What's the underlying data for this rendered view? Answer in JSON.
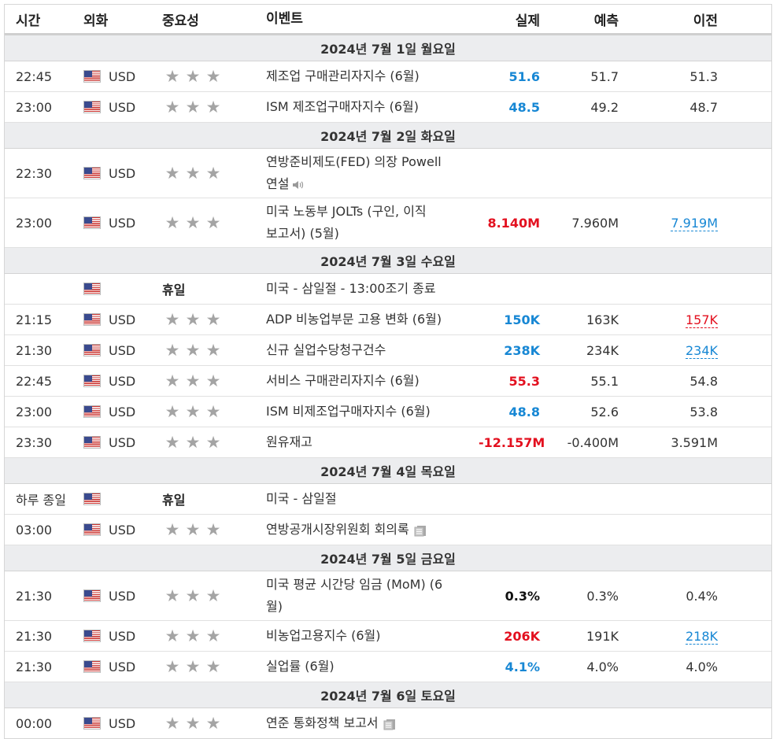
{
  "headers": {
    "time": "시간",
    "currency": "외화",
    "importance": "중요성",
    "event": "이벤트",
    "actual": "실제",
    "forecast": "예측",
    "previous": "이전"
  },
  "dates": [
    "2024년 7월 1일 월요일",
    "2024년 7월 2일 화요일",
    "2024년 7월 3일 수요일",
    "2024년 7월 4일 목요일",
    "2024년 7월 5일 금요일",
    "2024년 7월 6일 토요일"
  ],
  "rows": [
    {
      "time": "22:45",
      "currency": "USD",
      "event": "제조업 구매관리자지수 (6월)",
      "actual": "51.6",
      "forecast": "51.7",
      "previous": "51.3"
    },
    {
      "time": "23:00",
      "currency": "USD",
      "event": "ISM 제조업구매자지수 (6월)",
      "actual": "48.5",
      "forecast": "49.2",
      "previous": "48.7"
    },
    {
      "time": "22:30",
      "currency": "USD",
      "event_l1": "연방준비제도(FED) 의장 Powell",
      "event_l2": "연설",
      "actual": "",
      "forecast": "",
      "previous": ""
    },
    {
      "time": "23:00",
      "currency": "USD",
      "event_l1": "미국 노동부 JOLTs (구인, 이직",
      "event_l2": "보고서) (5월)",
      "actual": "8.140M",
      "forecast": "7.960M",
      "previous": "7.919M"
    },
    {
      "time": "",
      "currency": "",
      "importance_label": "휴일",
      "event": "미국 - 삼일절 - 13:00조기 종료"
    },
    {
      "time": "21:15",
      "currency": "USD",
      "event": "ADP 비농업부문 고용 변화 (6월)",
      "actual": "150K",
      "forecast": "163K",
      "previous": "157K"
    },
    {
      "time": "21:30",
      "currency": "USD",
      "event": "신규 실업수당청구건수",
      "actual": "238K",
      "forecast": "234K",
      "previous": "234K"
    },
    {
      "time": "22:45",
      "currency": "USD",
      "event": "서비스 구매관리자지수 (6월)",
      "actual": "55.3",
      "forecast": "55.1",
      "previous": "54.8"
    },
    {
      "time": "23:00",
      "currency": "USD",
      "event": "ISM 비제조업구매자지수 (6월)",
      "actual": "48.8",
      "forecast": "52.6",
      "previous": "53.8"
    },
    {
      "time": "23:30",
      "currency": "USD",
      "event": "원유재고",
      "actual": "-12.157M",
      "forecast": "-0.400M",
      "previous": "3.591M"
    },
    {
      "time": "하루 종일",
      "currency": "",
      "importance_label": "휴일",
      "event": "미국 - 삼일절"
    },
    {
      "time": "03:00",
      "currency": "USD",
      "event": "연방공개시장위원회 회의록"
    },
    {
      "time": "21:30",
      "currency": "USD",
      "event_l1": "미국 평균 시간당 임금 (MoM) (6",
      "event_l2": "월)",
      "actual": "0.3%",
      "forecast": "0.3%",
      "previous": "0.4%"
    },
    {
      "time": "21:30",
      "currency": "USD",
      "event": "비농업고용지수 (6월)",
      "actual": "206K",
      "forecast": "191K",
      "previous": "218K"
    },
    {
      "time": "21:30",
      "currency": "USD",
      "event": "실업률 (6월)",
      "actual": "4.1%",
      "forecast": "4.0%",
      "previous": "4.0%"
    },
    {
      "time": "00:00",
      "currency": "USD",
      "event": "연준 통화정책 보고서"
    }
  ],
  "colors": {
    "positive": "#1787d4",
    "negative": "#e3101f",
    "date_bg": "#ecedef",
    "star": "#a4a4a4"
  }
}
